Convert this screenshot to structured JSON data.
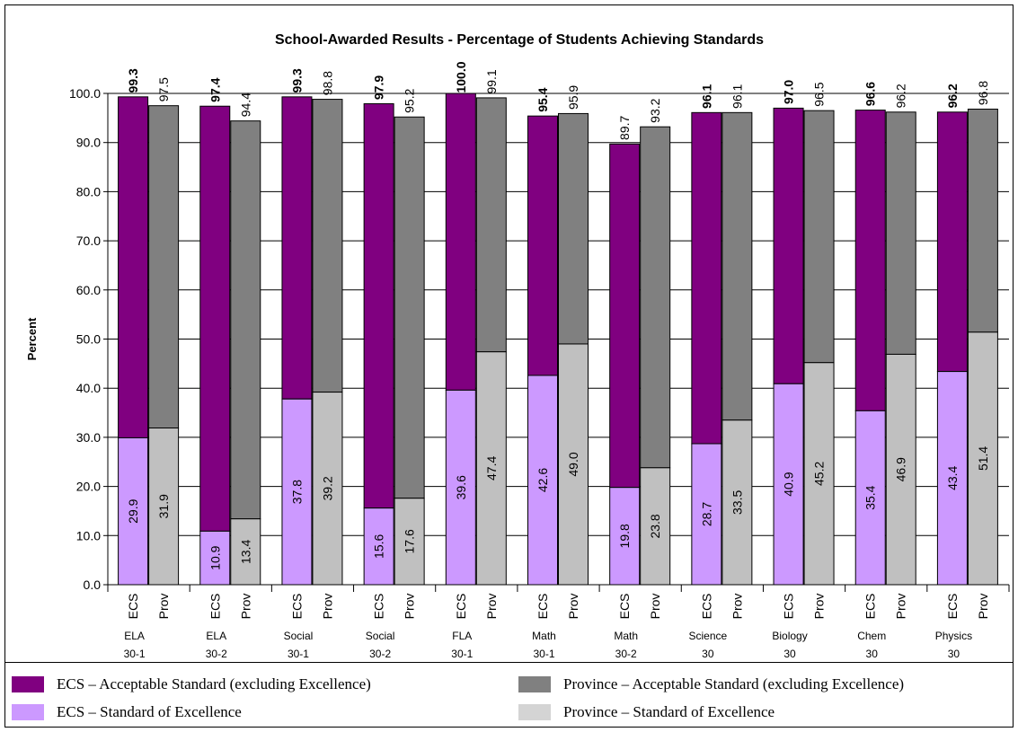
{
  "chart_data": {
    "type": "bar",
    "subtype": "stacked-grouped",
    "title": "School-Awarded Results - Percentage of Students Achieving Standards",
    "ylabel": "Percent",
    "xlabel": "",
    "ylim": [
      0,
      100
    ],
    "yticks": [
      "0.0",
      "10.0",
      "20.0",
      "30.0",
      "40.0",
      "50.0",
      "60.0",
      "70.0",
      "80.0",
      "90.0",
      "100.0"
    ],
    "grid": true,
    "legend_position": "bottom",
    "categories": [
      {
        "line1": "ELA",
        "line2": "30-1"
      },
      {
        "line1": "ELA",
        "line2": "30-2"
      },
      {
        "line1": "Social",
        "line2": "30-1"
      },
      {
        "line1": "Social",
        "line2": "30-2"
      },
      {
        "line1": "FLA",
        "line2": "30-1"
      },
      {
        "line1": "Math",
        "line2": "30-1"
      },
      {
        "line1": "Math",
        "line2": "30-2"
      },
      {
        "line1": "Science",
        "line2": "30"
      },
      {
        "line1": "Biology",
        "line2": "30"
      },
      {
        "line1": "Chem",
        "line2": "30"
      },
      {
        "line1": "Physics",
        "line2": "30"
      }
    ],
    "groups": [
      {
        "label": "ECS",
        "excellence": [
          29.9,
          10.9,
          37.8,
          15.6,
          39.6,
          42.6,
          19.8,
          28.7,
          40.9,
          35.4,
          43.4
        ],
        "acceptable_total": [
          99.3,
          97.4,
          99.3,
          97.9,
          100.0,
          95.4,
          89.7,
          96.1,
          97.0,
          96.6,
          96.2
        ],
        "total_bold": [
          true,
          true,
          true,
          true,
          true,
          true,
          false,
          true,
          true,
          true,
          true
        ]
      },
      {
        "label": "Prov",
        "excellence": [
          31.9,
          13.4,
          39.2,
          17.6,
          47.4,
          49.0,
          23.8,
          33.5,
          45.2,
          46.9,
          51.4
        ],
        "acceptable_total": [
          97.5,
          94.4,
          98.8,
          95.2,
          99.1,
          95.9,
          93.2,
          96.1,
          96.5,
          96.2,
          96.8
        ],
        "total_bold": [
          false,
          false,
          false,
          false,
          false,
          false,
          false,
          false,
          false,
          false,
          false
        ]
      }
    ],
    "series": [
      {
        "name": "ECS – Acceptable Standard (excluding Excellence)",
        "color": "#800080"
      },
      {
        "name": "ECS – Standard of Excellence",
        "color": "#CC99FF"
      },
      {
        "name": "Province – Acceptable Standard (excluding Excellence)",
        "color": "#808080"
      },
      {
        "name": "Province – Standard of Excellence",
        "color": "#C0C0C0"
      }
    ]
  },
  "legend": {
    "ecs_acceptable": "ECS – Acceptable Standard (excluding Excellence)",
    "prov_acceptable": "Province – Acceptable Standard (excluding Excellence)",
    "ecs_excellence": "ECS – Standard of Excellence",
    "prov_excellence": "Province – Standard of Excellence"
  }
}
